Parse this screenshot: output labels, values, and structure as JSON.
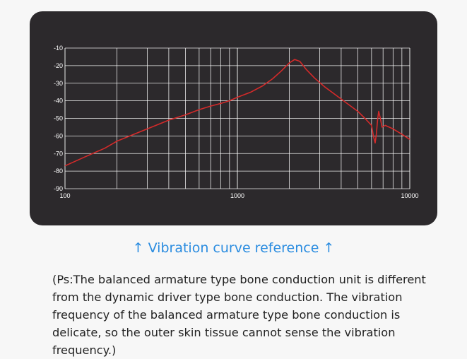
{
  "caption": {
    "arrow_left": "↑",
    "text": "Vibration curve reference",
    "arrow_right": "↑"
  },
  "note": "(Ps:The balanced armature type bone conduction unit is different from the dynamic driver type bone conduction. The vibration frequency of the balanced armature type bone conduction is delicate, so the outer skin tissue cannot sense the vibration frequency.)",
  "colors": {
    "curve": "#d42a2a",
    "background": "#2c292c",
    "grid": "#ffffff",
    "caption": "#2a8ce0"
  },
  "chart_data": {
    "type": "line",
    "title": "",
    "xlabel": "",
    "ylabel": "",
    "xscale": "log",
    "xlim": [
      100,
      10000
    ],
    "ylim": [
      -90,
      -10
    ],
    "grid": true,
    "x_tick_labels": [
      "100",
      "1000",
      "10000"
    ],
    "y_tick_labels": [
      "-10",
      "-20",
      "-30",
      "-40",
      "-50",
      "-60",
      "-70",
      "-80",
      "-90"
    ],
    "series": [
      {
        "x": [
          100,
          130,
          170,
          200,
          300,
          400,
          500,
          600,
          700,
          800,
          900,
          1000,
          1200,
          1400,
          1600,
          1800,
          2000,
          2150,
          2300,
          2500,
          2800,
          3200,
          4000,
          5000,
          5500,
          6000,
          6150,
          6300,
          6400,
          6500,
          6600,
          6750,
          6900,
          7200,
          8000,
          9000,
          10000
        ],
        "y": [
          -77,
          -72,
          -67,
          -63,
          -56,
          -51,
          -48,
          -45,
          -43,
          -41.5,
          -40,
          -38,
          -35,
          -31.5,
          -27.5,
          -23,
          -18.5,
          -16.5,
          -17.5,
          -22,
          -27,
          -32,
          -39,
          -46,
          -50,
          -54,
          -60,
          -64,
          -59,
          -51,
          -46,
          -50,
          -55,
          -54,
          -56,
          -59,
          -62
        ]
      }
    ]
  }
}
